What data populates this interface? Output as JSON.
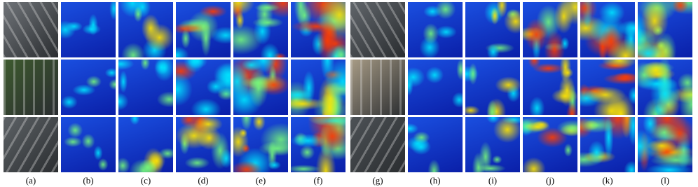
{
  "figure": {
    "labels": [
      "(a)",
      "(b)",
      "(c)",
      "(d)",
      "(e)",
      "(f)",
      "(g)",
      "(h)",
      "(i)",
      "(j)",
      "(k)",
      "(l)"
    ]
  }
}
